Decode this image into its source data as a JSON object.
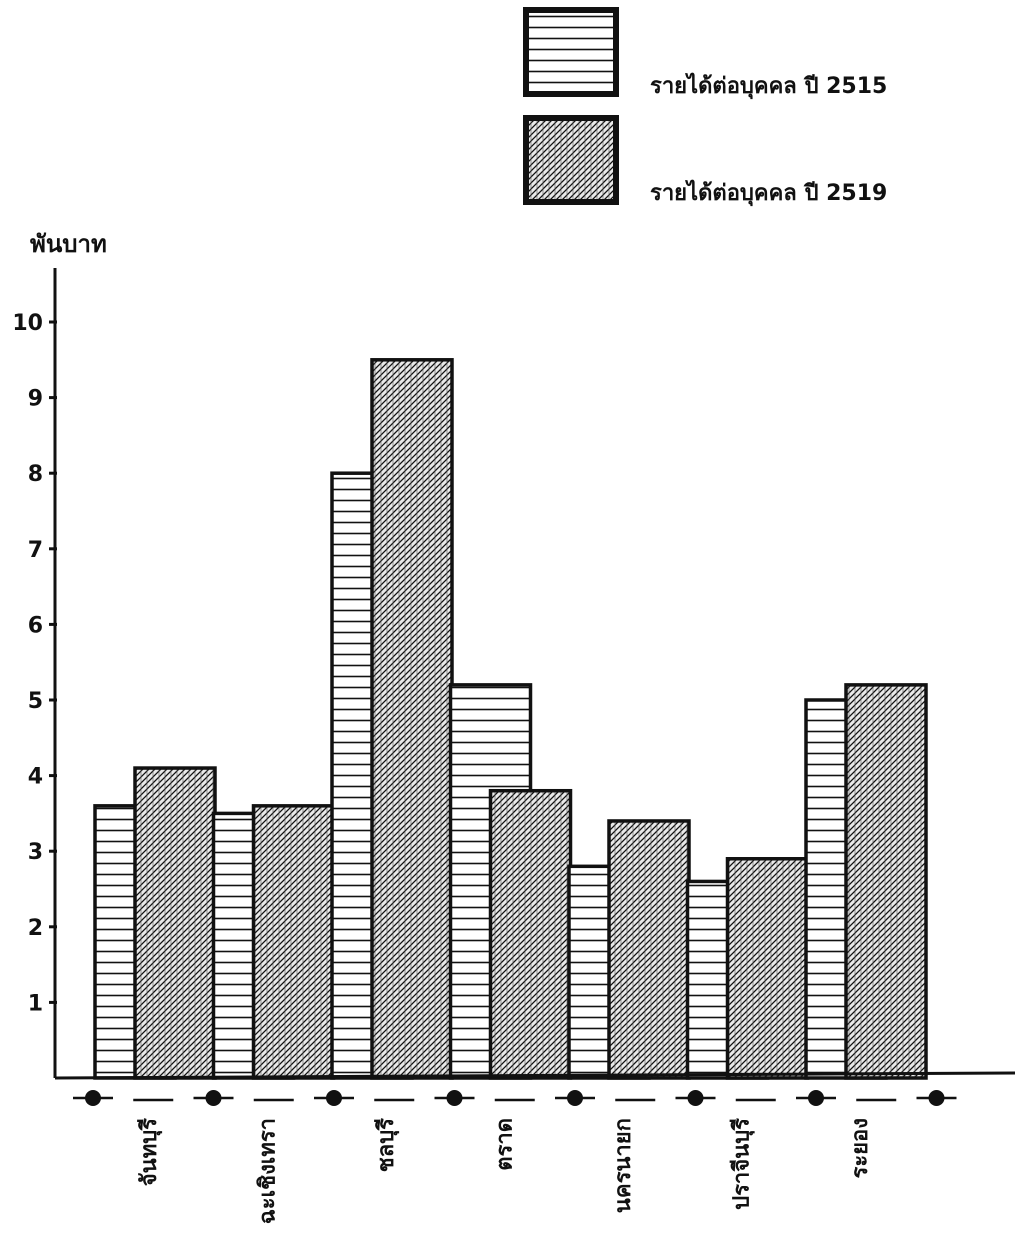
{
  "chart_data": {
    "type": "bar",
    "title": "",
    "xlabel": "",
    "ylabel": "พันบาท",
    "ylim": [
      0,
      10
    ],
    "yticks": [
      1,
      2,
      3,
      4,
      5,
      6,
      7,
      8,
      9,
      10
    ],
    "ytick_labels": [
      "1",
      "2",
      "3",
      "4",
      "5",
      "6",
      "7",
      "8",
      "9",
      "10"
    ],
    "grid": false,
    "legend_position": "top-right",
    "categories": [
      "จันทบุรี",
      "ฉะเชิงเทรา",
      "ชลบุรี",
      "ตราด",
      "นครนายก",
      "ปราจีนบุรี",
      "ระยอง"
    ],
    "series": [
      {
        "name": "รายได้ต่อบุคคล ปี 2515",
        "pattern": "horizontal-lines",
        "values": [
          3.6,
          3.5,
          8.0,
          5.2,
          2.8,
          2.6,
          5.0
        ]
      },
      {
        "name": "รายได้ต่อบุคคล ปี 2519",
        "pattern": "dense-diagonal-hatch",
        "values": [
          4.1,
          3.6,
          9.5,
          3.8,
          3.4,
          2.9,
          5.2
        ]
      }
    ],
    "colors": {
      "ink": "#111111",
      "background": "#ffffff"
    }
  }
}
